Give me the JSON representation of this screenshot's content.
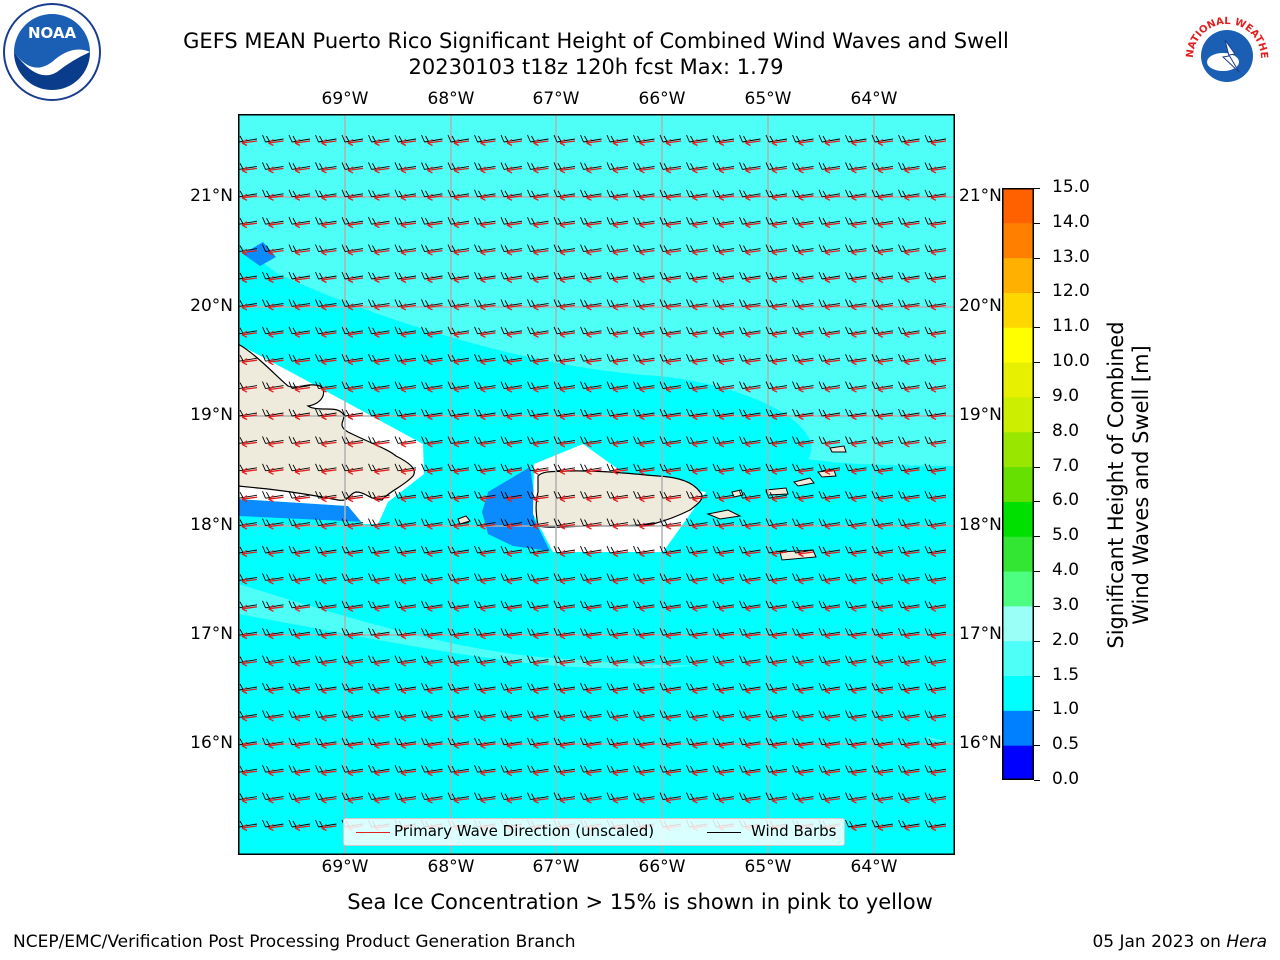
{
  "title_line1": "GEFS MEAN Puerto Rico Significant Height of Combined Wind Waves and Swell",
  "title_line2": "20230103 t18z 120h fcst   Max: 1.79",
  "logos": {
    "left": "NOAA",
    "right": "NATIONAL WEATHER SERVICE"
  },
  "map": {
    "lon_labels": [
      "69°W",
      "68°W",
      "67°W",
      "66°W",
      "65°W",
      "64°W"
    ],
    "lat_labels": [
      "21°N",
      "20°N",
      "19°N",
      "18°N",
      "17°N",
      "16°N"
    ],
    "land": [
      "Hispaniola",
      "Puerto Rico",
      "Virgin Islands"
    ],
    "colors": {
      "ocean_main": "#00ffff",
      "ocean_light": "#4dfff7",
      "ocean_deep": "#0080ff",
      "land": "#efebdc",
      "grid": "#b0b0b0",
      "wave_arrow": "#e02020",
      "wind_barb": "#000000"
    }
  },
  "colorbar": {
    "title_line1": "Significant Height of Combined",
    "title_line2": "Wind Waves and Swell [m]",
    "labels": [
      "15.0",
      "14.0",
      "13.0",
      "12.0",
      "11.0",
      "10.0",
      "9.0",
      "8.0",
      "7.0",
      "6.0",
      "5.0",
      "4.0",
      "3.0",
      "2.0",
      "1.5",
      "1.0",
      "0.5",
      "0.0"
    ],
    "colors_bottom_to_top": [
      "#0000ff",
      "#0080ff",
      "#00ffff",
      "#4dfff7",
      "#99fff7",
      "#4dff80",
      "#33e633",
      "#00e000",
      "#66e000",
      "#99e600",
      "#ccee00",
      "#e6f000",
      "#ffff00",
      "#ffd700",
      "#ffb000",
      "#ff8000",
      "#ff6000",
      "#ff4000",
      "#ff0000"
    ]
  },
  "legend": {
    "wave_label": "Primary Wave Direction (unscaled)",
    "wind_label": "Wind Barbs"
  },
  "sea_ice_note": "Sea Ice Concentration > 15% is shown in pink to yellow",
  "footer": {
    "left": "NCEP/EMC/Verification Post Processing Product Generation Branch",
    "right_date": "05 Jan 2023 on ",
    "right_host": "Hera"
  }
}
